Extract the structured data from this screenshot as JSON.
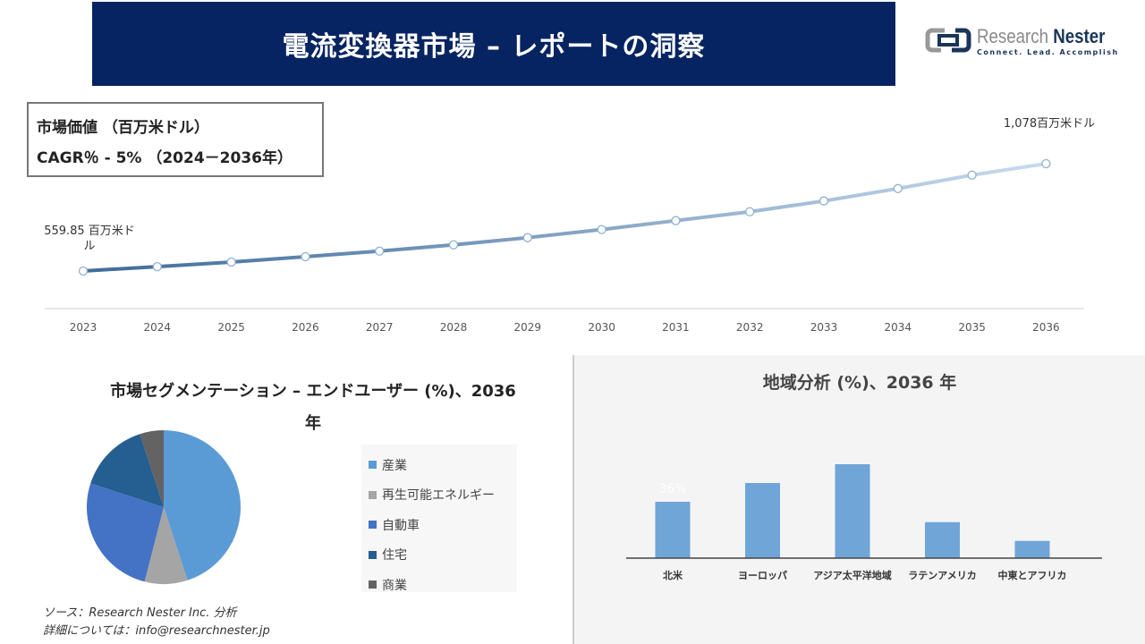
{
  "header": {
    "title": "電流変換器市場 – レポートの洞察"
  },
  "logo": {
    "name_a": "Research",
    "name_b": "Nester",
    "tagline": "Connect. Lead. Accomplish"
  },
  "kpi": {
    "line1": "市場価値 （百万米ドル）",
    "line2": "CAGR％ - 5% （2024－2036年）"
  },
  "colors": {
    "banner": "#062461",
    "bar": "#70a5d8",
    "line_start": "#3f6b99",
    "line_end": "#c8dbee"
  },
  "chart_data": [
    {
      "type": "line",
      "title": "市場価値 （百万米ドル）",
      "x": [
        "2023",
        "2024",
        "2025",
        "2026",
        "2027",
        "2028",
        "2029",
        "2030",
        "2031",
        "2032",
        "2033",
        "2034",
        "2035",
        "2036"
      ],
      "values": [
        559.85,
        581,
        603,
        629,
        656,
        686,
        721,
        760,
        803,
        846,
        898,
        958,
        1023,
        1078
      ],
      "labels": {
        "first": "559.85 百万米ドル",
        "last": "1,078百万米ドル"
      },
      "ylim": [
        450,
        1150
      ],
      "grid": false
    },
    {
      "type": "pie",
      "title": "市場セグメンテーション – エンドユーザー (%)、2036 年",
      "categories": [
        "産業",
        "再生可能エネルギー",
        "自動車",
        "住宅",
        "商業"
      ],
      "values": [
        45,
        9,
        26,
        15,
        5
      ],
      "colors": [
        "#5b9bd5",
        "#a5a5a5",
        "#4472c4",
        "#255e91",
        "#636363"
      ],
      "legend": "right"
    },
    {
      "type": "bar",
      "title": "地域分析 (%)、2036 年",
      "categories": [
        "北米",
        "ヨーロッパ",
        "アジア太平洋地域",
        "ラテンアメリカ",
        "中東とアフリカ"
      ],
      "values": [
        36,
        48,
        60,
        23,
        11
      ],
      "data_labels": [
        "36%",
        "",
        "",
        "",
        ""
      ]
    }
  ],
  "source": {
    "line1": "ソース：Research Nester Inc. 分析",
    "line2": "詳細については：info@researchnester.jp"
  }
}
